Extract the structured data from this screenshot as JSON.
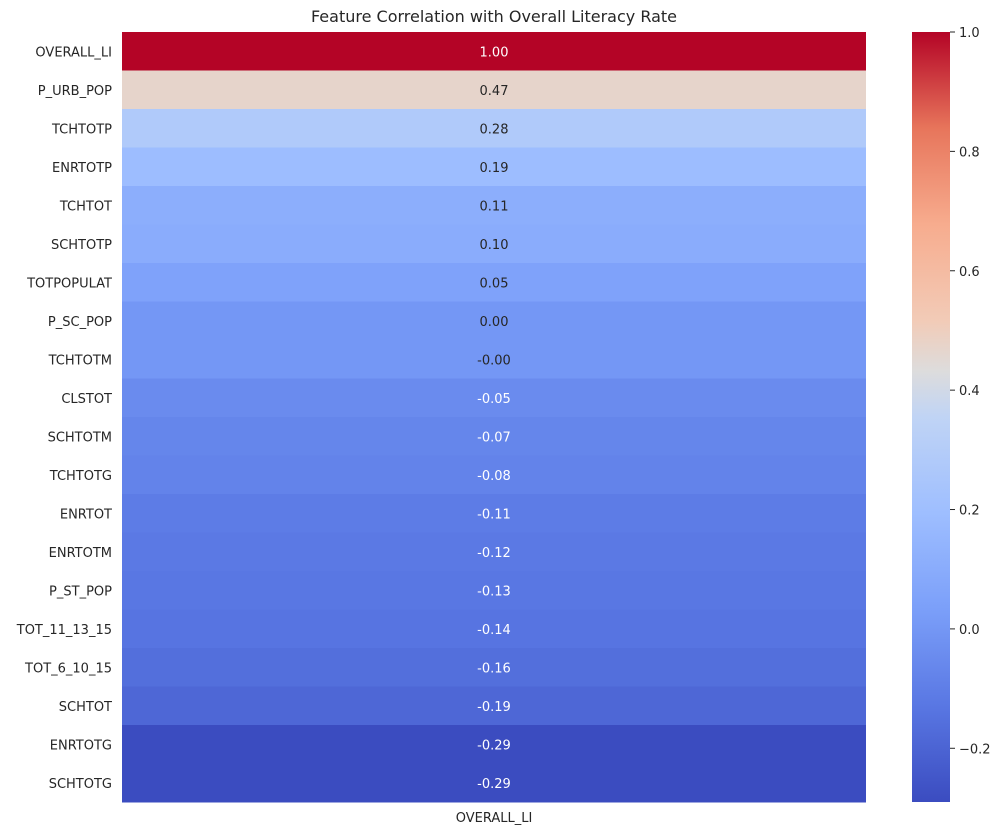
{
  "chart_data": {
    "type": "heatmap",
    "title": "Feature Correlation with Overall Literacy Rate",
    "xlabel": "",
    "ylabel": "",
    "columns": [
      "OVERALL_LI"
    ],
    "rows": [
      "OVERALL_LI",
      "P_URB_POP",
      "TCHTOTP",
      "ENRTOTP",
      "TCHTOT",
      "SCHTOTP",
      "TOTPOPULAT",
      "P_SC_POP",
      "TCHTOTM",
      "CLSTOT",
      "SCHTOTM",
      "TCHTOTG",
      "ENRTOT",
      "ENRTOTM",
      "P_ST_POP",
      "TOT_11_13_15",
      "TOT_6_10_15",
      "SCHTOT",
      "ENRTOTG",
      "SCHTOTG"
    ],
    "values": [
      1.0,
      0.47,
      0.28,
      0.19,
      0.11,
      0.1,
      0.05,
      0.0,
      -0.0,
      -0.05,
      -0.07,
      -0.08,
      -0.11,
      -0.12,
      -0.13,
      -0.14,
      -0.16,
      -0.19,
      -0.29,
      -0.29
    ],
    "annotations": [
      "1.00",
      "0.47",
      "0.28",
      "0.19",
      "0.11",
      "0.10",
      "0.05",
      "0.00",
      "-0.00",
      "-0.05",
      "-0.07",
      "-0.08",
      "-0.11",
      "-0.12",
      "-0.13",
      "-0.14",
      "-0.16",
      "-0.19",
      "-0.29",
      "-0.29"
    ],
    "colormap": "coolwarm",
    "vmin": -0.29,
    "vmax": 1.0,
    "colorbar": {
      "ticks": [
        -0.2,
        0.0,
        0.2,
        0.4,
        0.6,
        0.8,
        1.0
      ],
      "tick_labels": [
        "−0.2",
        "0.0",
        "0.2",
        "0.4",
        "0.6",
        "0.8",
        "1.0"
      ]
    },
    "grid": false,
    "legend": "colorbar-right"
  }
}
